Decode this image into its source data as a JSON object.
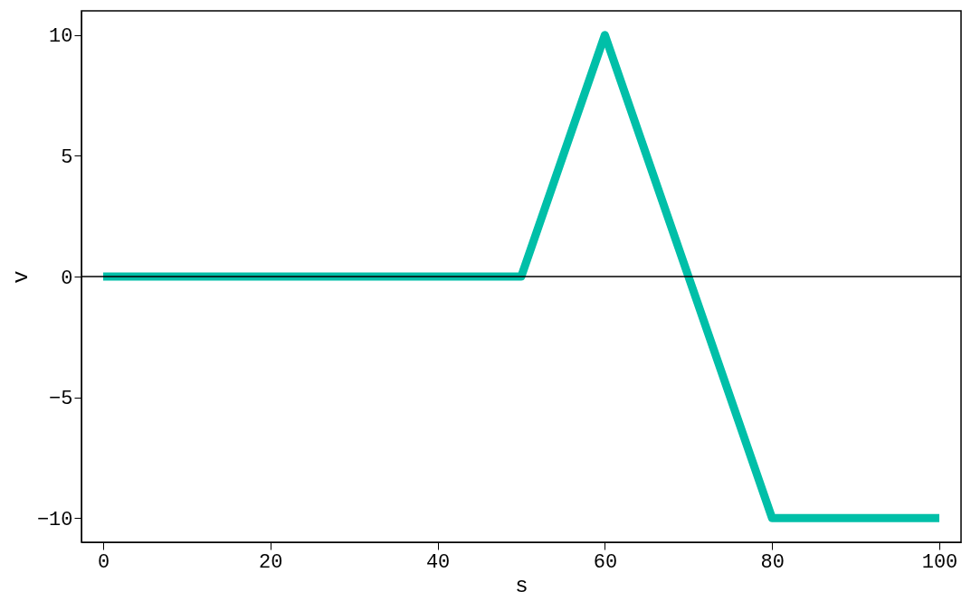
{
  "chart_data": {
    "type": "line",
    "xlabel": "s",
    "ylabel": "v",
    "x": [
      0,
      50,
      60,
      80,
      100
    ],
    "series": [
      {
        "color": "#00bfa8",
        "values": [
          0,
          0,
          10,
          -10,
          -10
        ]
      }
    ],
    "xlim": [
      -2.6,
      102.6
    ],
    "ylim": [
      -11,
      11
    ],
    "xticks": [
      0,
      20,
      40,
      60,
      80,
      100
    ],
    "yticks": [
      -10,
      -5,
      0,
      5,
      10
    ],
    "ref_lines": [
      {
        "axis": "y",
        "value": 0,
        "color": "#000000"
      }
    ],
    "grid": false,
    "marker": "none",
    "line_style": "solid"
  }
}
